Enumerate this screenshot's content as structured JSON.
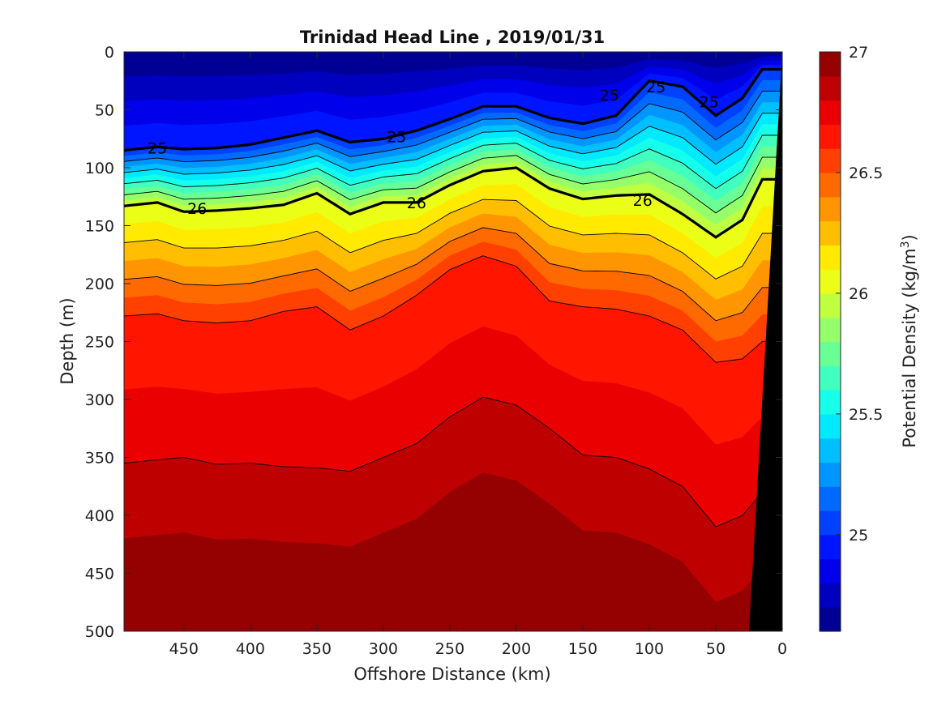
{
  "chart_data": {
    "type": "heatmap",
    "title": "Trinidad Head Line , 2019/01/31",
    "xlabel": "Offshore Distance (km)",
    "ylabel": "Depth (m)",
    "colorbar_label": "Potential Density (kg/m³)",
    "xlim": [
      495,
      0
    ],
    "ylim": [
      0,
      500
    ],
    "x_ticks": [
      450,
      400,
      350,
      300,
      250,
      200,
      150,
      100,
      50,
      0
    ],
    "y_ticks": [
      0,
      50,
      100,
      150,
      200,
      250,
      300,
      350,
      400,
      450,
      500
    ],
    "colorbar_range": [
      24.6,
      27.0
    ],
    "colorbar_ticks": [
      25,
      25.5,
      26,
      26.5,
      27
    ],
    "contour_interval": 0.1,
    "bold_contours": [
      25,
      26
    ],
    "thin_contours": [
      25.2,
      25.4,
      25.6,
      25.8,
      26.2,
      26.4,
      26.6,
      26.8
    ],
    "contour_labels": [
      {
        "x": 470,
        "depth": 83,
        "text": "25"
      },
      {
        "x": 290,
        "depth": 73,
        "text": "25"
      },
      {
        "x": 130,
        "depth": 37,
        "text": "25"
      },
      {
        "x": 95,
        "depth": 30,
        "text": "25"
      },
      {
        "x": 55,
        "depth": 43,
        "text": "25"
      },
      {
        "x": 440,
        "depth": 135,
        "text": "26"
      },
      {
        "x": 275,
        "depth": 130,
        "text": "26"
      },
      {
        "x": 105,
        "depth": 128,
        "text": "26"
      }
    ],
    "isopycnal_depths": {
      "x": [
        495,
        470,
        450,
        425,
        400,
        375,
        350,
        325,
        300,
        275,
        250,
        225,
        200,
        175,
        150,
        125,
        100,
        75,
        50,
        30,
        15
      ],
      "25.0": [
        85,
        82,
        84,
        83,
        80,
        74,
        68,
        78,
        75,
        68,
        58,
        47,
        47,
        57,
        62,
        55,
        25,
        30,
        55,
        40,
        15
      ],
      "26.0": [
        133,
        130,
        138,
        137,
        135,
        132,
        122,
        140,
        130,
        130,
        115,
        103,
        100,
        118,
        127,
        124,
        123,
        140,
        160,
        145,
        110
      ],
      "26.6": [
        228,
        226,
        232,
        234,
        232,
        224,
        220,
        240,
        228,
        210,
        188,
        176,
        185,
        215,
        220,
        222,
        228,
        240,
        268,
        265,
        250
      ],
      "26.8": [
        355,
        352,
        350,
        356,
        355,
        358,
        359,
        362,
        350,
        338,
        315,
        298,
        305,
        325,
        348,
        350,
        360,
        375,
        410,
        400,
        380
      ]
    },
    "bottom_profile": {
      "x": [
        0,
        25,
        0
      ],
      "depth": [
        0,
        500,
        500
      ]
    },
    "grid": false
  }
}
